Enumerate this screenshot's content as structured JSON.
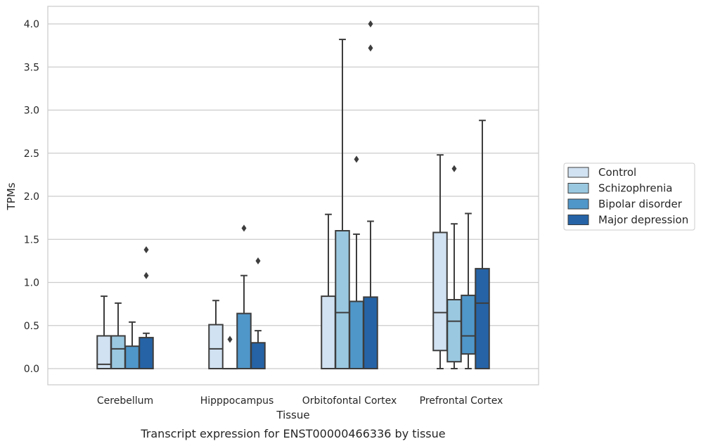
{
  "chart_data": {
    "type": "box",
    "title": "",
    "caption": "Transcript expression for ENST00000466336 by tissue",
    "xlabel": "Tissue",
    "ylabel": "TPMs",
    "ylim": [
      -0.19,
      4.2
    ],
    "yticks": [
      "0.0",
      "0.5",
      "1.0",
      "1.5",
      "2.0",
      "2.5",
      "3.0",
      "3.5",
      "4.0"
    ],
    "grid": "horizontal",
    "legend_placement": "right",
    "categories": [
      "Cerebellum",
      "Hipppocampus",
      "Orbitofontal Cortex",
      "Prefrontal Cortex"
    ],
    "series": [
      {
        "name": "Control",
        "color": "#d1e2f2",
        "boxes": [
          {
            "whislo": 0.0,
            "q1": 0.0,
            "med": 0.05,
            "q3": 0.38,
            "whishi": 0.84,
            "fliers": []
          },
          {
            "whislo": 0.0,
            "q1": 0.0,
            "med": 0.23,
            "q3": 0.51,
            "whishi": 0.79,
            "fliers": []
          },
          {
            "whislo": 0.0,
            "q1": 0.0,
            "med": 0.0,
            "q3": 0.84,
            "whishi": 1.79,
            "fliers": []
          },
          {
            "whislo": 0.0,
            "q1": 0.21,
            "med": 0.65,
            "q3": 1.58,
            "whishi": 2.48,
            "fliers": []
          }
        ]
      },
      {
        "name": "Schizophrenia",
        "color": "#9ac8e0",
        "boxes": [
          {
            "whislo": 0.0,
            "q1": 0.0,
            "med": 0.23,
            "q3": 0.38,
            "whishi": 0.76,
            "fliers": []
          },
          {
            "whislo": 0.0,
            "q1": 0.0,
            "med": 0.0,
            "q3": 0.0,
            "whishi": 0.0,
            "fliers": [
              0.34
            ]
          },
          {
            "whislo": 0.0,
            "q1": 0.0,
            "med": 0.65,
            "q3": 1.6,
            "whishi": 3.82,
            "fliers": []
          },
          {
            "whislo": 0.0,
            "q1": 0.08,
            "med": 0.55,
            "q3": 0.8,
            "whishi": 1.68,
            "fliers": [
              2.32
            ]
          }
        ]
      },
      {
        "name": "Bipolar disorder",
        "color": "#5097c9",
        "boxes": [
          {
            "whislo": 0.0,
            "q1": 0.0,
            "med": 0.0,
            "q3": 0.26,
            "whishi": 0.54,
            "fliers": []
          },
          {
            "whislo": 0.0,
            "q1": 0.0,
            "med": 0.0,
            "q3": 0.64,
            "whishi": 1.08,
            "fliers": [
              1.63
            ]
          },
          {
            "whislo": 0.0,
            "q1": 0.0,
            "med": 0.0,
            "q3": 0.78,
            "whishi": 1.56,
            "fliers": [
              2.43
            ]
          },
          {
            "whislo": 0.0,
            "q1": 0.17,
            "med": 0.38,
            "q3": 0.85,
            "whishi": 1.8,
            "fliers": []
          }
        ]
      },
      {
        "name": "Major depression",
        "color": "#2563a6",
        "boxes": [
          {
            "whislo": 0.0,
            "q1": 0.0,
            "med": 0.0,
            "q3": 0.36,
            "whishi": 0.41,
            "fliers": [
              1.08,
              1.38
            ]
          },
          {
            "whislo": 0.0,
            "q1": 0.0,
            "med": 0.0,
            "q3": 0.3,
            "whishi": 0.44,
            "fliers": [
              1.25
            ]
          },
          {
            "whislo": 0.0,
            "q1": 0.0,
            "med": 0.0,
            "q3": 0.83,
            "whishi": 1.71,
            "fliers": [
              3.72,
              4.0
            ]
          },
          {
            "whislo": 0.0,
            "q1": 0.0,
            "med": 0.76,
            "q3": 1.16,
            "whishi": 2.88,
            "fliers": []
          }
        ]
      }
    ]
  }
}
